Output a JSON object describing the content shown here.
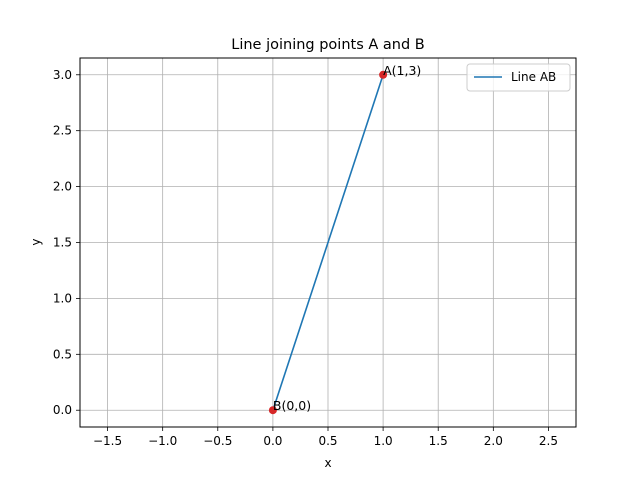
{
  "chart_data": {
    "type": "line",
    "title": "Line joining points A and B",
    "xlabel": "x",
    "ylabel": "y",
    "xlim": [
      -1.75,
      2.75
    ],
    "ylim": [
      -0.15,
      3.15
    ],
    "grid": true,
    "legend": {
      "placement": "top-right",
      "entries": [
        "Line AB"
      ]
    },
    "x_ticks": [
      -1.5,
      -1.0,
      -0.5,
      0.0,
      0.5,
      1.0,
      1.5,
      2.0,
      2.5
    ],
    "x_tick_labels": [
      "−1.5",
      "−1.0",
      "−0.5",
      "0.0",
      "0.5",
      "1.0",
      "1.5",
      "2.0",
      "2.5"
    ],
    "y_ticks": [
      0.0,
      0.5,
      1.0,
      1.5,
      2.0,
      2.5,
      3.0
    ],
    "y_tick_labels": [
      "0.0",
      "0.5",
      "1.0",
      "1.5",
      "2.0",
      "2.5",
      "3.0"
    ],
    "series": [
      {
        "name": "Line AB",
        "x": [
          1,
          0
        ],
        "y": [
          3,
          0
        ],
        "color": "#1f77b4"
      }
    ],
    "points": [
      {
        "label": "A(1,3)",
        "x": 1,
        "y": 3,
        "color": "#d62728"
      },
      {
        "label": "B(0,0)",
        "x": 0,
        "y": 0,
        "color": "#d62728"
      }
    ]
  }
}
